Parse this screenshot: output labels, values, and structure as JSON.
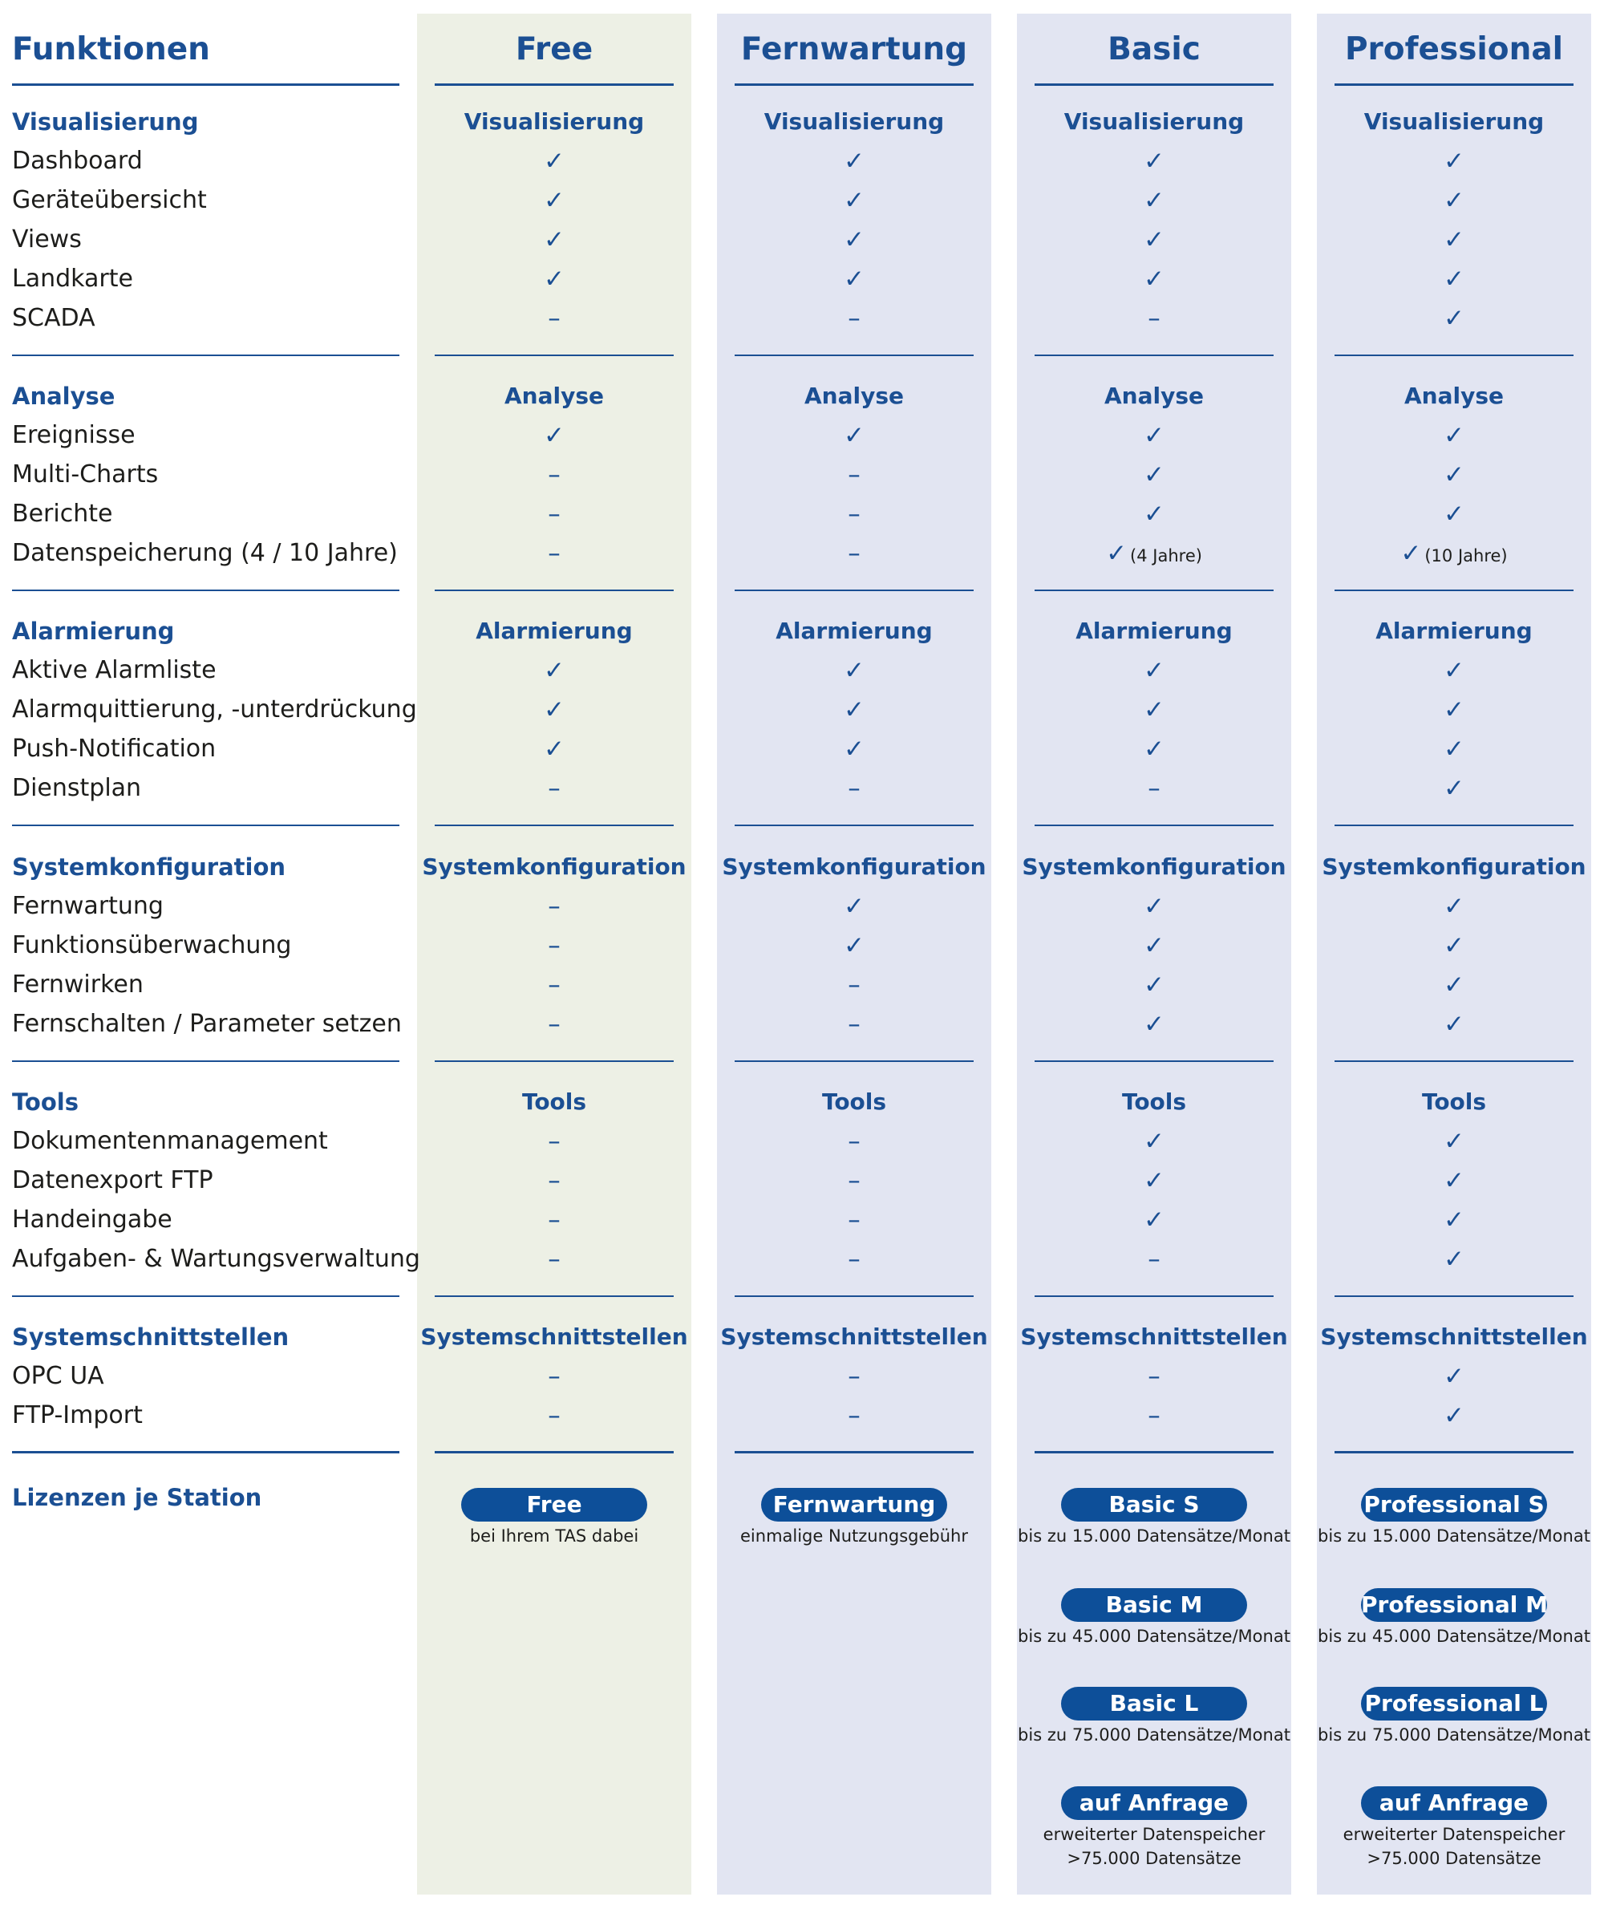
{
  "header": {
    "functions_title": "Funktionen",
    "plans": [
      "Free",
      "Fernwartung",
      "Basic",
      "Professional"
    ]
  },
  "sections": [
    {
      "title": "Visualisierung",
      "rows": [
        {
          "label": "Dashboard",
          "values": [
            "✓",
            "✓",
            "✓",
            "✓"
          ],
          "notes": [
            "",
            "",
            "",
            ""
          ]
        },
        {
          "label": "Geräteübersicht",
          "values": [
            "✓",
            "✓",
            "✓",
            "✓"
          ],
          "notes": [
            "",
            "",
            "",
            ""
          ]
        },
        {
          "label": "Views",
          "values": [
            "✓",
            "✓",
            "✓",
            "✓"
          ],
          "notes": [
            "",
            "",
            "",
            ""
          ]
        },
        {
          "label": "Landkarte",
          "values": [
            "✓",
            "✓",
            "✓",
            "✓"
          ],
          "notes": [
            "",
            "",
            "",
            ""
          ]
        },
        {
          "label": "SCADA",
          "values": [
            "–",
            "–",
            "–",
            "✓"
          ],
          "notes": [
            "",
            "",
            "",
            ""
          ]
        }
      ]
    },
    {
      "title": "Analyse",
      "rows": [
        {
          "label": "Ereignisse",
          "values": [
            "✓",
            "✓",
            "✓",
            "✓"
          ],
          "notes": [
            "",
            "",
            "",
            ""
          ]
        },
        {
          "label": "Multi-Charts",
          "values": [
            "–",
            "–",
            "✓",
            "✓"
          ],
          "notes": [
            "",
            "",
            "",
            ""
          ]
        },
        {
          "label": "Berichte",
          "values": [
            "–",
            "–",
            "✓",
            "✓"
          ],
          "notes": [
            "",
            "",
            "",
            ""
          ]
        },
        {
          "label": "Datenspeicherung (4 / 10 Jahre)",
          "values": [
            "–",
            "–",
            "✓",
            "✓"
          ],
          "notes": [
            "",
            "",
            "(4 Jahre)",
            "(10 Jahre)"
          ]
        }
      ]
    },
    {
      "title": "Alarmierung",
      "rows": [
        {
          "label": "Aktive Alarmliste",
          "values": [
            "✓",
            "✓",
            "✓",
            "✓"
          ],
          "notes": [
            "",
            "",
            "",
            ""
          ]
        },
        {
          "label": "Alarmquittierung, -unterdrückung",
          "values": [
            "✓",
            "✓",
            "✓",
            "✓"
          ],
          "notes": [
            "",
            "",
            "",
            ""
          ]
        },
        {
          "label": "Push-Notification",
          "values": [
            "✓",
            "✓",
            "✓",
            "✓"
          ],
          "notes": [
            "",
            "",
            "",
            ""
          ]
        },
        {
          "label": "Dienstplan",
          "values": [
            "–",
            "–",
            "–",
            "✓"
          ],
          "notes": [
            "",
            "",
            "",
            ""
          ]
        }
      ]
    },
    {
      "title": "Systemkonfiguration",
      "rows": [
        {
          "label": "Fernwartung",
          "values": [
            "–",
            "✓",
            "✓",
            "✓"
          ],
          "notes": [
            "",
            "",
            "",
            ""
          ]
        },
        {
          "label": "Funktionsüberwachung",
          "values": [
            "–",
            "✓",
            "✓",
            "✓"
          ],
          "notes": [
            "",
            "",
            "",
            ""
          ]
        },
        {
          "label": "Fernwirken",
          "values": [
            "–",
            "–",
            "✓",
            "✓"
          ],
          "notes": [
            "",
            "",
            "",
            ""
          ]
        },
        {
          "label": "Fernschalten / Parameter setzen",
          "values": [
            "–",
            "–",
            "✓",
            "✓"
          ],
          "notes": [
            "",
            "",
            "",
            ""
          ]
        }
      ]
    },
    {
      "title": "Tools",
      "rows": [
        {
          "label": "Dokumentenmanagement",
          "values": [
            "–",
            "–",
            "✓",
            "✓"
          ],
          "notes": [
            "",
            "",
            "",
            ""
          ]
        },
        {
          "label": "Datenexport FTP",
          "values": [
            "–",
            "–",
            "✓",
            "✓"
          ],
          "notes": [
            "",
            "",
            "",
            ""
          ]
        },
        {
          "label": "Handeingabe",
          "values": [
            "–",
            "–",
            "✓",
            "✓"
          ],
          "notes": [
            "",
            "",
            "",
            ""
          ]
        },
        {
          "label": "Aufgaben- & Wartungsverwaltung",
          "values": [
            "–",
            "–",
            "–",
            "✓"
          ],
          "notes": [
            "",
            "",
            "",
            ""
          ]
        }
      ]
    },
    {
      "title": "Systemschnittstellen",
      "rows": [
        {
          "label": "OPC UA",
          "values": [
            "–",
            "–",
            "–",
            "✓"
          ],
          "notes": [
            "",
            "",
            "",
            ""
          ]
        },
        {
          "label": "FTP-Import",
          "values": [
            "–",
            "–",
            "–",
            "✓"
          ],
          "notes": [
            "",
            "",
            "",
            ""
          ]
        }
      ]
    }
  ],
  "licenses": {
    "label": "Lizenzen je Station",
    "columns": [
      [
        {
          "name": "Free",
          "desc": [
            "bei Ihrem TAS dabei"
          ]
        }
      ],
      [
        {
          "name": "Fernwartung",
          "desc": [
            "einmalige Nutzungsgebühr"
          ]
        }
      ],
      [
        {
          "name": "Basic S",
          "desc": [
            "bis zu 15.000 Datensätze/Monat"
          ]
        },
        {
          "name": "Basic M",
          "desc": [
            "bis zu 45.000 Datensätze/Monat"
          ]
        },
        {
          "name": "Basic L",
          "desc": [
            "bis zu 75.000 Datensätze/Monat"
          ]
        },
        {
          "name": "auf Anfrage",
          "desc": [
            "erweiterter Datenspeicher",
            ">75.000 Datensätze"
          ]
        }
      ],
      [
        {
          "name": "Professional S",
          "desc": [
            "bis zu 15.000 Datensätze/Monat"
          ]
        },
        {
          "name": "Professional M",
          "desc": [
            "bis zu 45.000 Datensätze/Monat"
          ]
        },
        {
          "name": "Professional L",
          "desc": [
            "bis zu 75.000 Datensätze/Monat"
          ]
        },
        {
          "name": "auf Anfrage",
          "desc": [
            "erweiterter Datenspeicher",
            ">75.000 Datensätze"
          ]
        }
      ]
    ]
  }
}
